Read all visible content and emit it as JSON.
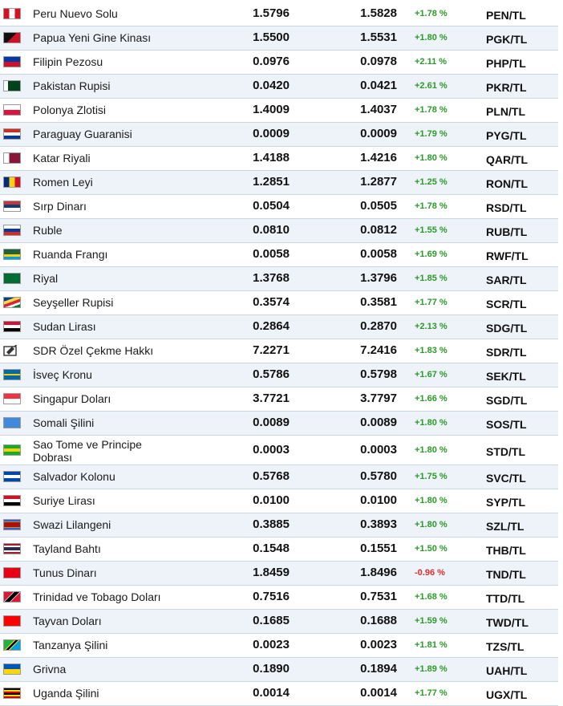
{
  "rows": [
    {
      "name": "Peru Nuevo Solu",
      "buy": "1.5796",
      "sell": "1.5828",
      "change": "+1.78 %",
      "code": "PEN/TL",
      "flag": "peru-flag"
    },
    {
      "name": "Papua Yeni Gine Kinası",
      "buy": "1.5500",
      "sell": "1.5531",
      "change": "+1.80 %",
      "code": "PGK/TL",
      "flag": "papua-new-guinea-flag"
    },
    {
      "name": "Filipin Pezosu",
      "buy": "0.0976",
      "sell": "0.0978",
      "change": "+2.11 %",
      "code": "PHP/TL",
      "flag": "philippines-flag"
    },
    {
      "name": "Pakistan Rupisi",
      "buy": "0.0420",
      "sell": "0.0421",
      "change": "+2.61 %",
      "code": "PKR/TL",
      "flag": "pakistan-flag"
    },
    {
      "name": "Polonya Zlotisi",
      "buy": "1.4009",
      "sell": "1.4037",
      "change": "+1.78 %",
      "code": "PLN/TL",
      "flag": "poland-flag"
    },
    {
      "name": "Paraguay Guaranisi",
      "buy": "0.0009",
      "sell": "0.0009",
      "change": "+1.79 %",
      "code": "PYG/TL",
      "flag": "paraguay-flag"
    },
    {
      "name": "Katar Riyali",
      "buy": "1.4188",
      "sell": "1.4216",
      "change": "+1.80 %",
      "code": "QAR/TL",
      "flag": "qatar-flag"
    },
    {
      "name": "Romen Leyi",
      "buy": "1.2851",
      "sell": "1.2877",
      "change": "+1.25 %",
      "code": "RON/TL",
      "flag": "romania-flag"
    },
    {
      "name": "Sırp Dinarı",
      "buy": "0.0504",
      "sell": "0.0505",
      "change": "+1.78 %",
      "code": "RSD/TL",
      "flag": "serbia-flag"
    },
    {
      "name": "Ruble",
      "buy": "0.0810",
      "sell": "0.0812",
      "change": "+1.55 %",
      "code": "RUB/TL",
      "flag": "russia-flag"
    },
    {
      "name": "Ruanda Frangı",
      "buy": "0.0058",
      "sell": "0.0058",
      "change": "+1.69 %",
      "code": "RWF/TL",
      "flag": "rwanda-flag"
    },
    {
      "name": "Riyal",
      "buy": "1.3768",
      "sell": "1.3796",
      "change": "+1.85 %",
      "code": "SAR/TL",
      "flag": "saudi-arabia-flag"
    },
    {
      "name": "Seyşeller Rupisi",
      "buy": "0.3574",
      "sell": "0.3581",
      "change": "+1.77 %",
      "code": "SCR/TL",
      "flag": "seychelles-flag"
    },
    {
      "name": "Sudan Lirası",
      "buy": "0.2864",
      "sell": "0.2870",
      "change": "+2.13 %",
      "code": "SDG/TL",
      "flag": "sudan-flag"
    },
    {
      "name": "SDR Özel Çekme Hakkı",
      "buy": "7.2271",
      "sell": "7.2416",
      "change": "+1.83 %",
      "code": "SDR/TL",
      "flag": "sdr-icon"
    },
    {
      "name": "İsveç Kronu",
      "buy": "0.5786",
      "sell": "0.5798",
      "change": "+1.67 %",
      "code": "SEK/TL",
      "flag": "sweden-flag"
    },
    {
      "name": "Singapur Doları",
      "buy": "3.7721",
      "sell": "3.7797",
      "change": "+1.66 %",
      "code": "SGD/TL",
      "flag": "singapore-flag"
    },
    {
      "name": "Somali Şilini",
      "buy": "0.0089",
      "sell": "0.0089",
      "change": "+1.80 %",
      "code": "SOS/TL",
      "flag": "somalia-flag"
    },
    {
      "name": "Sao Tome ve Principe Dobrası",
      "buy": "0.0003",
      "sell": "0.0003",
      "change": "+1.80 %",
      "code": "STD/TL",
      "flag": "sao-tome-flag"
    },
    {
      "name": "Salvador Kolonu",
      "buy": "0.5768",
      "sell": "0.5780",
      "change": "+1.75 %",
      "code": "SVC/TL",
      "flag": "el-salvador-flag"
    },
    {
      "name": "Suriye Lirası",
      "buy": "0.0100",
      "sell": "0.0100",
      "change": "+1.80 %",
      "code": "SYP/TL",
      "flag": "syria-flag"
    },
    {
      "name": "Swazi Lilangeni",
      "buy": "0.3885",
      "sell": "0.3893",
      "change": "+1.80 %",
      "code": "SZL/TL",
      "flag": "eswatini-flag"
    },
    {
      "name": "Tayland Bahtı",
      "buy": "0.1548",
      "sell": "0.1551",
      "change": "+1.50 %",
      "code": "THB/TL",
      "flag": "thailand-flag"
    },
    {
      "name": "Tunus Dinarı",
      "buy": "1.8459",
      "sell": "1.8496",
      "change": "-0.96 %",
      "code": "TND/TL",
      "flag": "tunisia-flag"
    },
    {
      "name": "Trinidad ve Tobago Doları",
      "buy": "0.7516",
      "sell": "0.7531",
      "change": "+1.68 %",
      "code": "TTD/TL",
      "flag": "trinidad-tobago-flag"
    },
    {
      "name": "Tayvan Doları",
      "buy": "0.1685",
      "sell": "0.1688",
      "change": "+1.59 %",
      "code": "TWD/TL",
      "flag": "taiwan-flag"
    },
    {
      "name": "Tanzanya Şilini",
      "buy": "0.0023",
      "sell": "0.0023",
      "change": "+1.81 %",
      "code": "TZS/TL",
      "flag": "tanzania-flag"
    },
    {
      "name": "Grivna",
      "buy": "0.1890",
      "sell": "0.1894",
      "change": "+1.89 %",
      "code": "UAH/TL",
      "flag": "ukraine-flag"
    },
    {
      "name": "Uganda Şilini",
      "buy": "0.0014",
      "sell": "0.0014",
      "change": "+1.77 %",
      "code": "UGX/TL",
      "flag": "uganda-flag"
    }
  ],
  "colors": {
    "positive": "#2a9a28",
    "negative": "#e52d2d",
    "row_alt": "#eef3f9",
    "divider": "#c9d7e5"
  }
}
